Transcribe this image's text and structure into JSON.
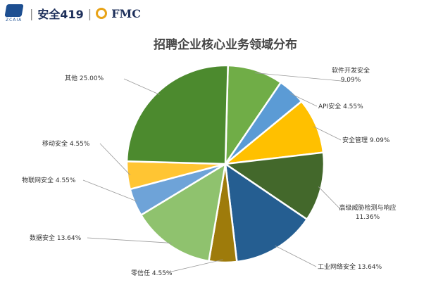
{
  "header": {
    "logo_sub": "ZCAIA",
    "brand": "安全419",
    "partner": "FMC"
  },
  "chart_data": {
    "type": "pie",
    "title": "招聘企业核心业务领域分布",
    "slices": [
      {
        "name": "软件开发安全",
        "value": 9.09,
        "label": "9.09%",
        "color": "#70ad47"
      },
      {
        "name": "API安全",
        "value": 4.55,
        "label": "4.55%",
        "color": "#5b9bd5"
      },
      {
        "name": "安全管理",
        "value": 9.09,
        "label": "9.09%",
        "color": "#ffc000"
      },
      {
        "name": "高级威胁检测与响应",
        "value": 11.36,
        "label": "11.36%",
        "color": "#43682b"
      },
      {
        "name": "工业网络安全",
        "value": 13.64,
        "label": "13.64%",
        "color": "#255e91"
      },
      {
        "name": "零信任",
        "value": 4.55,
        "label": "4.55%",
        "color": "#9e7b0b"
      },
      {
        "name": "数据安全",
        "value": 13.64,
        "label": "13.64%",
        "color": "#8fc26e"
      },
      {
        "name": "物联网安全",
        "value": 4.55,
        "label": "4.55%",
        "color": "#6ea3d8"
      },
      {
        "name": "移动安全",
        "value": 4.55,
        "label": "4.55%",
        "color": "#ffc533"
      },
      {
        "name": "其他",
        "value": 25.0,
        "label": "25.00%",
        "color": "#4c8a2e"
      }
    ]
  }
}
